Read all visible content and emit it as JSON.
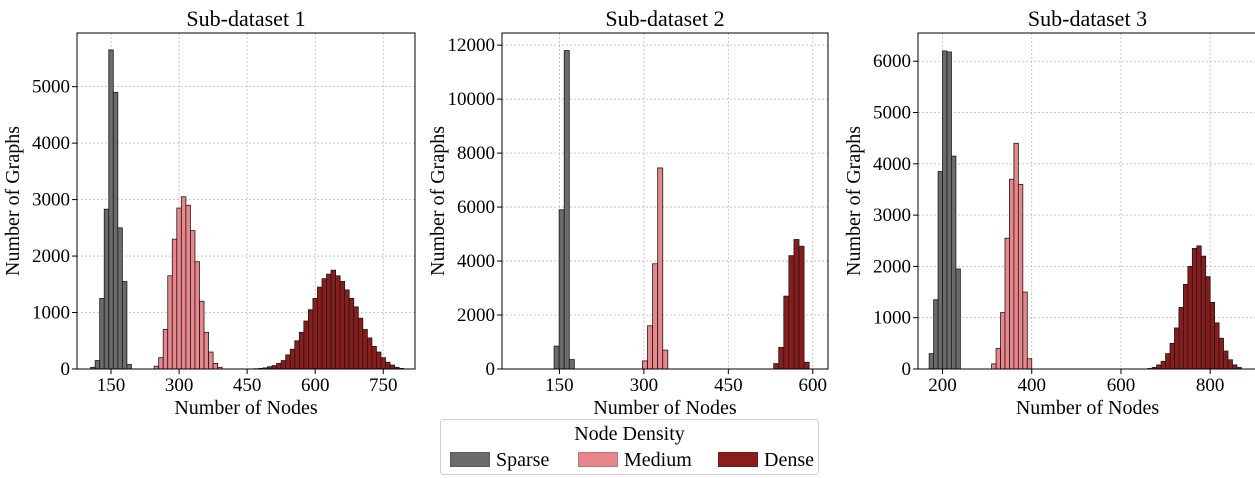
{
  "chart_data": [
    {
      "type": "bar",
      "title": "Sub-dataset 1",
      "xlabel": "Number of Nodes",
      "ylabel": "Number of Graphs",
      "xlim": [
        75,
        820
      ],
      "ylim": [
        0,
        5950
      ],
      "xticks": [
        150,
        300,
        450,
        600,
        750
      ],
      "yticks": [
        0,
        1000,
        2000,
        3000,
        4000,
        5000
      ],
      "grid": true,
      "bin_width": 10,
      "series": [
        {
          "name": "Sparse",
          "color": "#6b6b6b",
          "x": [
            110,
            120,
            130,
            140,
            150,
            160,
            170,
            180,
            190
          ],
          "values": [
            30,
            150,
            1250,
            2830,
            5650,
            4900,
            2500,
            1550,
            80
          ]
        },
        {
          "name": "Medium",
          "color": "#e8868c",
          "x": [
            250,
            260,
            270,
            280,
            290,
            300,
            310,
            320,
            330,
            340,
            350,
            360,
            370,
            380,
            390
          ],
          "values": [
            50,
            200,
            700,
            1650,
            2300,
            2850,
            3050,
            2900,
            2450,
            1900,
            1200,
            650,
            300,
            100,
            30
          ]
        },
        {
          "name": "Dense",
          "color": "#8b1c1c",
          "x": [
            470,
            480,
            490,
            500,
            510,
            520,
            530,
            540,
            550,
            560,
            570,
            580,
            590,
            600,
            610,
            620,
            630,
            640,
            650,
            660,
            670,
            680,
            690,
            700,
            710,
            720,
            730,
            740,
            750,
            760,
            770,
            780,
            790
          ],
          "values": [
            5,
            10,
            20,
            40,
            60,
            100,
            150,
            250,
            350,
            500,
            650,
            850,
            1050,
            1250,
            1450,
            1600,
            1680,
            1750,
            1650,
            1550,
            1400,
            1250,
            1100,
            900,
            700,
            550,
            400,
            300,
            200,
            120,
            70,
            30,
            10
          ]
        }
      ]
    },
    {
      "type": "bar",
      "title": "Sub-dataset 2",
      "xlabel": "Number of Nodes",
      "ylabel": "Number of Graphs",
      "xlim": [
        48,
        627
      ],
      "ylim": [
        0,
        12450
      ],
      "xticks": [
        150,
        300,
        450,
        600
      ],
      "yticks": [
        0,
        2000,
        4000,
        6000,
        8000,
        10000,
        12000
      ],
      "grid": true,
      "bin_width": 9,
      "series": [
        {
          "name": "Sparse",
          "color": "#6b6b6b",
          "x": [
            145,
            154,
            163,
            172
          ],
          "values": [
            850,
            5900,
            11800,
            350
          ]
        },
        {
          "name": "Medium",
          "color": "#e8868c",
          "x": [
            302,
            311,
            320,
            329,
            338
          ],
          "values": [
            300,
            1600,
            3900,
            7450,
            700
          ]
        },
        {
          "name": "Dense",
          "color": "#8b1c1c",
          "x": [
            535,
            544,
            553,
            562,
            571,
            580,
            589
          ],
          "values": [
            200,
            800,
            2700,
            4200,
            4800,
            4550,
            250
          ]
        }
      ]
    },
    {
      "type": "bar",
      "title": "Sub-dataset 3",
      "xlabel": "Number of Nodes",
      "ylabel": "Number of Graphs",
      "xlim": [
        145,
        905
      ],
      "ylim": [
        0,
        6550
      ],
      "xticks": [
        200,
        400,
        600,
        800
      ],
      "yticks": [
        0,
        1000,
        2000,
        3000,
        4000,
        5000,
        6000
      ],
      "grid": true,
      "bin_width": 10,
      "series": [
        {
          "name": "Sparse",
          "color": "#6b6b6b",
          "x": [
            175,
            185,
            195,
            205,
            215,
            225,
            235
          ],
          "values": [
            300,
            1350,
            3850,
            6200,
            6180,
            4150,
            1950
          ]
        },
        {
          "name": "Medium",
          "color": "#e8868c",
          "x": [
            315,
            325,
            335,
            345,
            355,
            365,
            375,
            385,
            395
          ],
          "values": [
            100,
            400,
            1100,
            2550,
            3700,
            4400,
            3600,
            1500,
            200
          ]
        },
        {
          "name": "Dense",
          "color": "#8b1c1c",
          "x": [
            665,
            675,
            685,
            695,
            705,
            715,
            725,
            735,
            745,
            755,
            765,
            775,
            785,
            795,
            805,
            815,
            825,
            835,
            845,
            855,
            865
          ],
          "values": [
            10,
            30,
            80,
            150,
            300,
            500,
            800,
            1200,
            1650,
            2000,
            2350,
            2400,
            2200,
            1800,
            1300,
            900,
            600,
            350,
            180,
            80,
            30
          ]
        }
      ]
    }
  ],
  "legend": {
    "title": "Node Density",
    "items": [
      {
        "label": "Sparse",
        "color": "#6b6b6b"
      },
      {
        "label": "Medium",
        "color": "#e8868c"
      },
      {
        "label": "Dense",
        "color": "#8b1c1c"
      }
    ]
  }
}
